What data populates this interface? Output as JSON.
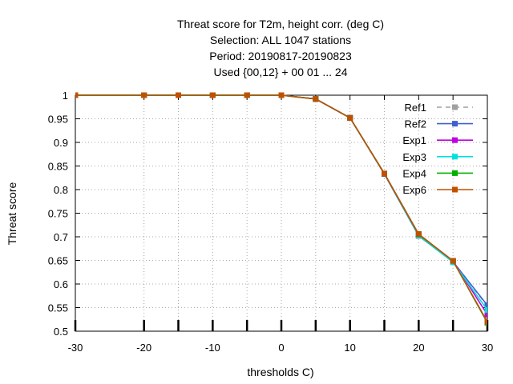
{
  "chart_data": {
    "type": "line",
    "title_lines": [
      "Threat score  for T2m, height corr. (deg C)",
      "Selection: ALL    1047 stations",
      "Period: 20190817-20190823",
      "Used {00,12} + 00 01 ... 24"
    ],
    "xlabel": "thresholds C)",
    "ylabel": "Threat score",
    "xlim": [
      -30,
      30
    ],
    "ylim": [
      0.5,
      1
    ],
    "xticks": [
      -30,
      -20,
      -15,
      -10,
      -5,
      0,
      5,
      10,
      15,
      20,
      25,
      30
    ],
    "xtick_labels": [
      "-30",
      "-20",
      "-10",
      "0",
      "10",
      "20",
      "30"
    ],
    "xtick_label_values": [
      -30,
      -20,
      -10,
      0,
      10,
      20,
      30
    ],
    "yticks": [
      0.5,
      0.55,
      0.6,
      0.65,
      0.7,
      0.75,
      0.8,
      0.85,
      0.9,
      0.95,
      1
    ],
    "ytick_labels": [
      "0.5",
      "0.55",
      "0.6",
      "0.65",
      "0.7",
      "0.75",
      "0.8",
      "0.85",
      "0.9",
      "0.95",
      "1"
    ],
    "grid": true,
    "legend_position": "top-right",
    "x": [
      -30,
      -20,
      -15,
      -10,
      -5,
      0,
      5,
      10,
      15,
      20,
      25,
      30
    ],
    "series": [
      {
        "name": "Ref1",
        "color": "#a0a0a0",
        "dashed": true,
        "values": [
          1,
          1,
          1,
          1,
          1,
          1,
          0.992,
          0.952,
          0.833,
          0.703,
          0.648,
          0.553
        ]
      },
      {
        "name": "Ref2",
        "color": "#4060d0",
        "dashed": false,
        "values": [
          1,
          1,
          1,
          1,
          1,
          1,
          0.992,
          0.952,
          0.833,
          0.702,
          0.647,
          0.555
        ]
      },
      {
        "name": "Exp1",
        "color": "#c000e0",
        "dashed": false,
        "values": [
          1,
          1,
          1,
          1,
          1,
          1,
          0.992,
          0.952,
          0.834,
          0.705,
          0.649,
          0.535
        ]
      },
      {
        "name": "Exp3",
        "color": "#00e0e0",
        "dashed": false,
        "values": [
          1,
          1,
          1,
          1,
          1,
          1,
          0.992,
          0.952,
          0.834,
          0.703,
          0.646,
          0.545
        ]
      },
      {
        "name": "Exp4",
        "color": "#00b000",
        "dashed": false,
        "values": [
          1,
          1,
          1,
          1,
          1,
          1,
          0.992,
          0.952,
          0.834,
          0.705,
          0.649,
          0.518
        ]
      },
      {
        "name": "Exp6",
        "color": "#c05000",
        "dashed": false,
        "values": [
          1,
          1,
          1,
          1,
          1,
          1,
          0.992,
          0.952,
          0.834,
          0.706,
          0.649,
          0.52
        ]
      }
    ]
  }
}
